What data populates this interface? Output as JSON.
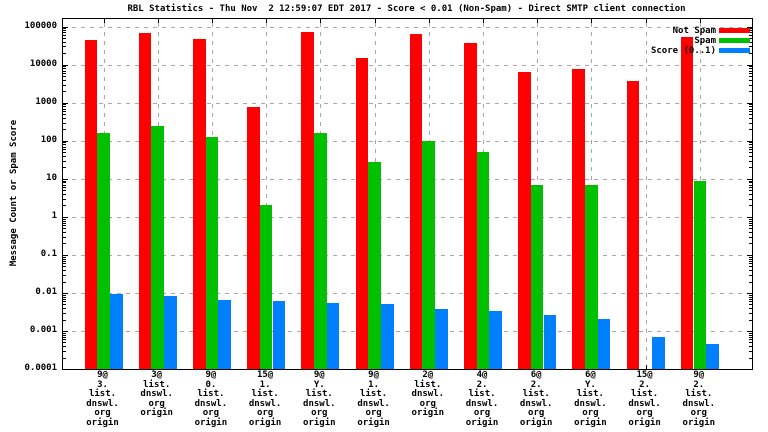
{
  "title": "RBL Statistics - Thu Nov  2 12:59:07 EDT 2017 - Score < 0.01 (Non-Spam) - Direct SMTP client connection",
  "ylabel": "Message Count or Spam Score",
  "colors": {
    "not_spam": "#ff0000",
    "spam": "#00c000",
    "score": "#0080ff",
    "grid": "#a8a8a8",
    "axis": "#000000"
  },
  "legend": [
    {
      "label": "Not Spam",
      "color": "#ff0000"
    },
    {
      "label": "Spam",
      "color": "#00c000"
    },
    {
      "label": "Score (0..1)",
      "color": "#0080ff"
    }
  ],
  "chart_data": {
    "type": "bar",
    "title": "RBL Statistics - Thu Nov  2 12:59:07 EDT 2017 - Score < 0.01 (Non-Spam) - Direct SMTP client connection",
    "xlabel": "",
    "ylabel": "Message Count or Spam Score",
    "y_scale": "log",
    "ylim": [
      0.0001,
      100000
    ],
    "grid": true,
    "legend_position": "top-right-inside",
    "y_tick_labels": [
      "100000",
      "10000",
      "1000",
      "100",
      "10",
      "1",
      "0.1",
      "0.01",
      "0.001",
      "0.0001"
    ],
    "y_ticks": [
      100000,
      10000,
      1000,
      100,
      10,
      1,
      0.1,
      0.01,
      0.001,
      0.0001
    ],
    "categories": [
      "9@\n3.\nlist.\ndnswl.\norg\norigin",
      "3@\nlist.\ndnswl.\norg\norigin",
      "9@\n0.\nlist.\ndnswl.\norg\norigin",
      "15@\n1.\nlist.\ndnswl.\norg\norigin",
      "9@\nY.\nlist.\ndnswl.\norg\norigin",
      "9@\n1.\nlist.\ndnswl.\norg\norigin",
      "2@\nlist.\ndnswl.\norg\norigin",
      "4@\n2.\nlist.\ndnswl.\norg\norigin",
      "6@\n2.\nlist.\ndnswl.\norg\norigin",
      "6@\nY.\nlist.\ndnswl.\norg\norigin",
      "15@\n2.\nlist.\ndnswl.\norg\norigin",
      "9@\n2.\nlist.\ndnswl.\norg\norigin"
    ],
    "series": [
      {
        "name": "Not Spam",
        "color": "#ff0000",
        "values": [
          45000,
          68000,
          46000,
          750,
          70000,
          15000,
          65000,
          38000,
          6500,
          7700,
          3600,
          52000
        ]
      },
      {
        "name": "Spam",
        "color": "#00c000",
        "values": [
          160,
          240,
          125,
          2,
          155,
          28,
          100,
          50,
          7,
          7,
          null,
          9
        ]
      },
      {
        "name": "Score (0..1)",
        "color": "#0080ff",
        "values": [
          0.0095,
          0.0085,
          0.0067,
          0.0063,
          0.0055,
          0.005,
          0.0039,
          0.0033,
          0.0027,
          0.0021,
          0.0007,
          0.00047
        ]
      }
    ]
  }
}
